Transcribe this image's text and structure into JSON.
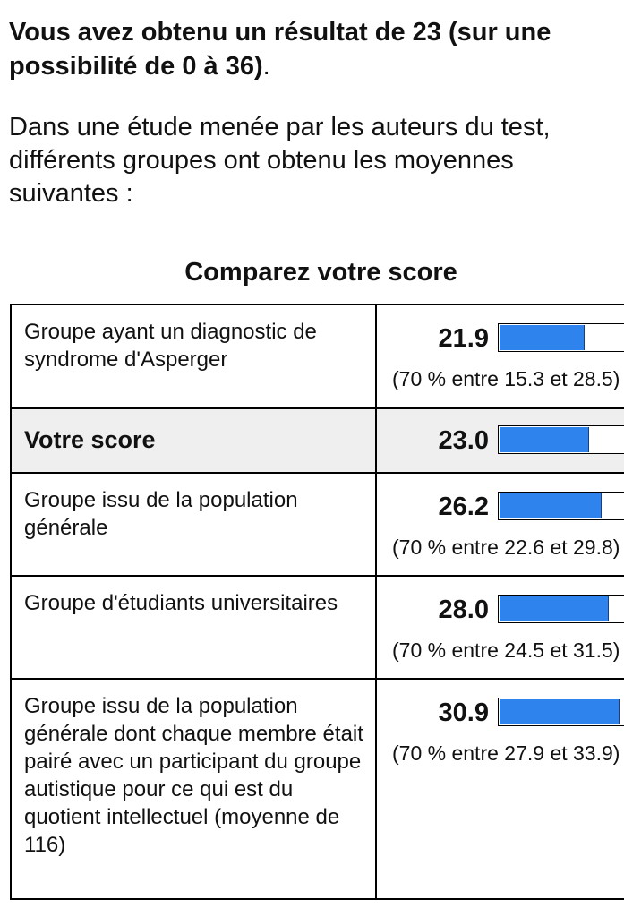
{
  "result": {
    "text_bold": "Vous avez obtenu un résultat de 23 (sur une possibilité de 0 à 36)",
    "text_end": "."
  },
  "intro": "Dans une étude menée par les auteurs du test, différents groupes ont obtenu les moyennes suivantes :",
  "comparison": {
    "title": "Comparez votre score",
    "scale_max": 36,
    "accent_color": "#2f83ec",
    "rows": [
      {
        "label": "Groupe ayant un diagnostic de syndrome d'Asperger",
        "score": "21.9",
        "range": "(70 % entre 15.3 et 28.5)",
        "highlight": false
      },
      {
        "label": "Votre score",
        "score": "23.0",
        "range": "",
        "highlight": true
      },
      {
        "label": "Groupe issu de la population générale",
        "score": "26.2",
        "range": "(70 % entre 22.6 et 29.8)",
        "highlight": false
      },
      {
        "label": "Groupe d'étudiants universitaires",
        "score": "28.0",
        "range": "(70 % entre 24.5 et 31.5)",
        "highlight": false
      },
      {
        "label": "Groupe issu de la population générale dont chaque membre était pairé avec un participant du groupe autistique pour ce qui est du quotient intellectuel (moyenne de 116)",
        "score": "30.9",
        "range": "(70 % entre 27.9 et 33.9)",
        "highlight": false
      }
    ]
  }
}
